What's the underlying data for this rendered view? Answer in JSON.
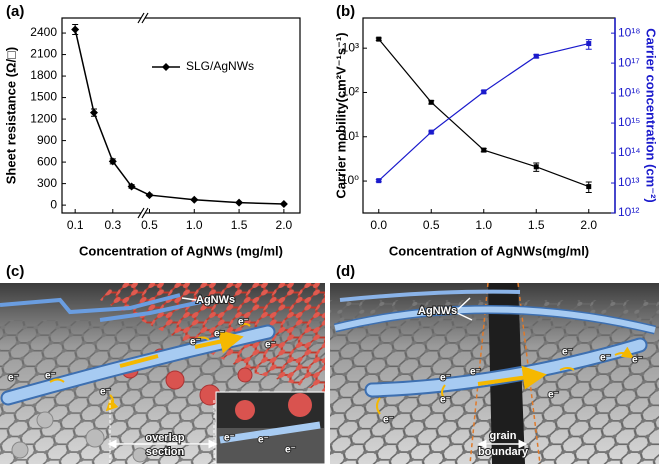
{
  "chart_data": [
    {
      "type": "line",
      "panel_label": "(a)",
      "x_label": "Concentration of AgNWs (mg/ml)",
      "y_label": "Sheet resistance (Ω/□)",
      "x": [
        0.1,
        0.2,
        0.3,
        0.4,
        0.5,
        1.0,
        1.5,
        2.0
      ],
      "series": [
        {
          "name": "SLG/AgNWs",
          "color": "#000000",
          "values": [
            2450,
            1290,
            610,
            260,
            140,
            75,
            35,
            15
          ],
          "errors": [
            70,
            50,
            35,
            25,
            15,
            10,
            8,
            8
          ]
        }
      ],
      "xlim": [
        0.03,
        2.18
      ],
      "x_break": 0.45,
      "xticks": [
        0.1,
        0.3,
        0.5,
        {
          "value": 1,
          "label": "1.0"
        },
        1.5,
        {
          "value": 2,
          "label": "2.0"
        }
      ],
      "ylim": [
        -110,
        2610
      ],
      "yticks": [
        0,
        300,
        600,
        900,
        1200,
        1500,
        1800,
        2100,
        2400
      ],
      "legend": "upper right",
      "grid": false
    },
    {
      "type": "line",
      "panel_label": "(b)",
      "x_label": "Concentration of AgNWs(mg/ml)",
      "y_label": "Carrier mobility(cm²V⁻¹s⁻¹)",
      "y2_label": "Carrier concentration (cm⁻²)",
      "x": [
        0.0,
        0.5,
        1.0,
        1.5,
        2.0
      ],
      "series": [
        {
          "color": "#000000",
          "values": [
            1600,
            60,
            5,
            2.1,
            0.75
          ],
          "errors": [
            100,
            5,
            0.4,
            0.45,
            0.2
          ]
        },
        {
          "color": "#1a1acc",
          "axis": "y2",
          "values": [
            12000000000000.0,
            500000000000000.0,
            1.1e+16,
            1.7e+17,
            4.5e+17
          ],
          "errors": [
            1000000000000.0,
            40000000000000.0,
            1000000000000000.0,
            2e+16,
            1.6e+17
          ]
        }
      ],
      "xlim": [
        -0.15,
        2.25
      ],
      "xticks": [
        {
          "value": 0,
          "label": "0.0"
        },
        0.5,
        {
          "value": 1,
          "label": "1.0"
        },
        1.5,
        {
          "value": 2,
          "label": "2.0"
        }
      ],
      "ylog": true,
      "ylim": [
        0.19,
        4800
      ],
      "yticks": [
        {
          "value": 1,
          "label": "10⁰"
        },
        {
          "value": 10,
          "label": "10¹"
        },
        {
          "value": 100,
          "label": "10²"
        },
        {
          "value": 1000,
          "label": "10³"
        }
      ],
      "y2log": true,
      "y2lim": [
        1000000000000.0,
        3.2e+18
      ],
      "y2ticks": [
        {
          "value": 1000000000000.0,
          "label": "10¹²"
        },
        {
          "value": 10000000000000.0,
          "label": "10¹³"
        },
        {
          "value": 100000000000000.0,
          "label": "10¹⁴"
        },
        {
          "value": 1000000000000000.0,
          "label": "10¹⁵"
        },
        {
          "value": 1e+16,
          "label": "10¹⁶"
        },
        {
          "value": 1e+17,
          "label": "10¹⁷"
        },
        {
          "value": 1e+18,
          "label": "10¹⁸"
        }
      ],
      "grid": false
    }
  ],
  "panels": [
    {
      "label": "(c)",
      "wires": "AgNWs",
      "region": [
        "overlap",
        "section"
      ],
      "electrons": [
        "e⁻",
        "e⁻",
        "e⁻",
        "e⁻",
        "e⁻",
        "e⁻",
        "e⁻",
        "e⁻",
        "e⁻",
        "e⁻"
      ]
    },
    {
      "label": "(d)",
      "wires": "AgNWs",
      "region": [
        "grain",
        "boundary"
      ],
      "electrons": [
        "e⁻",
        "e⁻",
        "e⁻",
        "e⁻",
        "e⁻",
        "e⁻",
        "e⁻",
        "e⁻"
      ]
    }
  ]
}
